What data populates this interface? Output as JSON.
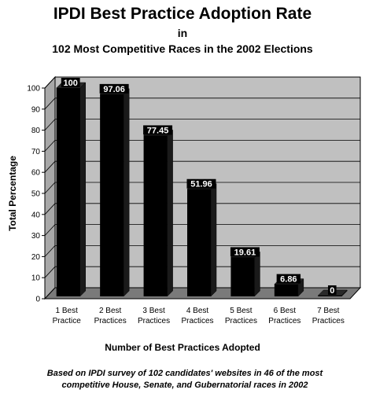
{
  "chart_data": {
    "type": "bar",
    "title": "IPDI Best Practice Adoption Rate",
    "subtitle_line1": "in",
    "subtitle_line2": "102 Most Competitive Races in the 2002 Elections",
    "categories": [
      [
        "1 Best",
        "Practice"
      ],
      [
        "2 Best",
        "Practices"
      ],
      [
        "3 Best",
        "Practices"
      ],
      [
        "4 Best",
        "Practices"
      ],
      [
        "5 Best",
        "Practices"
      ],
      [
        "6 Best",
        "Practices"
      ],
      [
        "7 Best",
        "Practices"
      ]
    ],
    "values": [
      100,
      97.06,
      77.45,
      51.96,
      19.61,
      6.86,
      0
    ],
    "value_labels": [
      "100",
      "97.06",
      "77.45",
      "51.96",
      "19.61",
      "6.86",
      "0"
    ],
    "ylabel": "Total Percentage",
    "xlabel": "Number of Best Practices Adopted",
    "ylim": [
      0,
      100
    ],
    "yticks": [
      "0",
      "10",
      "20",
      "30",
      "40",
      "50",
      "60",
      "70",
      "80",
      "90",
      "100"
    ],
    "grid": "y",
    "legend": "none",
    "colors": {
      "bar": "#000000",
      "bar_side": "#1a1a1a",
      "wall": "#c0c0c0",
      "floor": "#7a7a7a"
    },
    "footnote_line1": "Based on IPDI survey of 102 candidates' websites in 46 of the most",
    "footnote_line2": "competitive House, Senate, and Gubernatorial races in 2002"
  }
}
